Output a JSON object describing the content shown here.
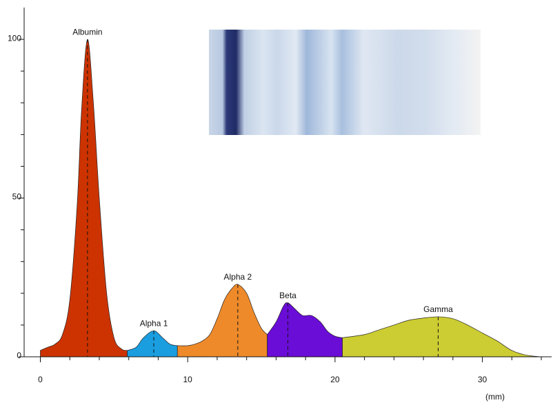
{
  "chart_data": {
    "type": "area",
    "x_label": "(mm)",
    "xlim": [
      -1.1,
      34.7
    ],
    "ylim": [
      0,
      110
    ],
    "xticks": [
      0,
      10,
      20,
      30
    ],
    "x_minor_ticks": [
      2,
      4,
      6,
      8,
      12,
      14,
      16,
      18,
      22,
      24,
      26,
      28,
      32,
      34
    ],
    "yticks": [
      0,
      50,
      100
    ],
    "y_minor_ticks": [
      10,
      20,
      30,
      40,
      60,
      70,
      80,
      90
    ],
    "series": [
      {
        "name": "Albumin",
        "color": "#cc3300",
        "peak_x": 3.2,
        "x": [
          0,
          0.5,
          1,
          1.5,
          2,
          2.5,
          2.8,
          3.2,
          3.6,
          4,
          4.5,
          5,
          5.5,
          5.9
        ],
        "values": [
          2,
          3,
          4,
          7,
          18,
          48,
          78,
          100,
          80,
          50,
          20,
          6,
          2.5,
          2
        ]
      },
      {
        "name": "Alpha 1",
        "color": "#1a9ee0",
        "peak_x": 7.7,
        "x": [
          5.9,
          6.5,
          7,
          7.7,
          8.3,
          8.8,
          9.3
        ],
        "values": [
          2,
          3,
          6,
          8.2,
          6,
          4,
          3.5
        ]
      },
      {
        "name": "Alpha 2",
        "color": "#ee8a2a",
        "peak_x": 13.4,
        "x": [
          9.3,
          10,
          10.5,
          11,
          11.5,
          12,
          12.5,
          13,
          13.4,
          14,
          14.5,
          15,
          15.4
        ],
        "values": [
          3.5,
          3.5,
          4,
          5,
          7,
          12,
          18,
          21.5,
          22.8,
          20,
          14,
          9,
          7
        ]
      },
      {
        "name": "Beta",
        "color": "#6a0dd6",
        "peak_x": 16.8,
        "x": [
          15.4,
          16,
          16.5,
          16.8,
          17.3,
          17.8,
          18.4,
          19,
          19.5,
          20,
          20.5
        ],
        "values": [
          7,
          11,
          16,
          17,
          15,
          13,
          13,
          11,
          8,
          6.5,
          6
        ]
      },
      {
        "name": "Gamma",
        "color": "#cccc33",
        "peak_x": 27,
        "x": [
          20.5,
          22,
          23,
          24,
          25,
          26,
          27,
          28,
          29,
          30,
          31,
          32,
          33,
          34
        ],
        "values": [
          6,
          7,
          8.5,
          10,
          11.5,
          12.2,
          12.6,
          12,
          10,
          7.5,
          5,
          2,
          0.5,
          0
        ]
      }
    ]
  }
}
